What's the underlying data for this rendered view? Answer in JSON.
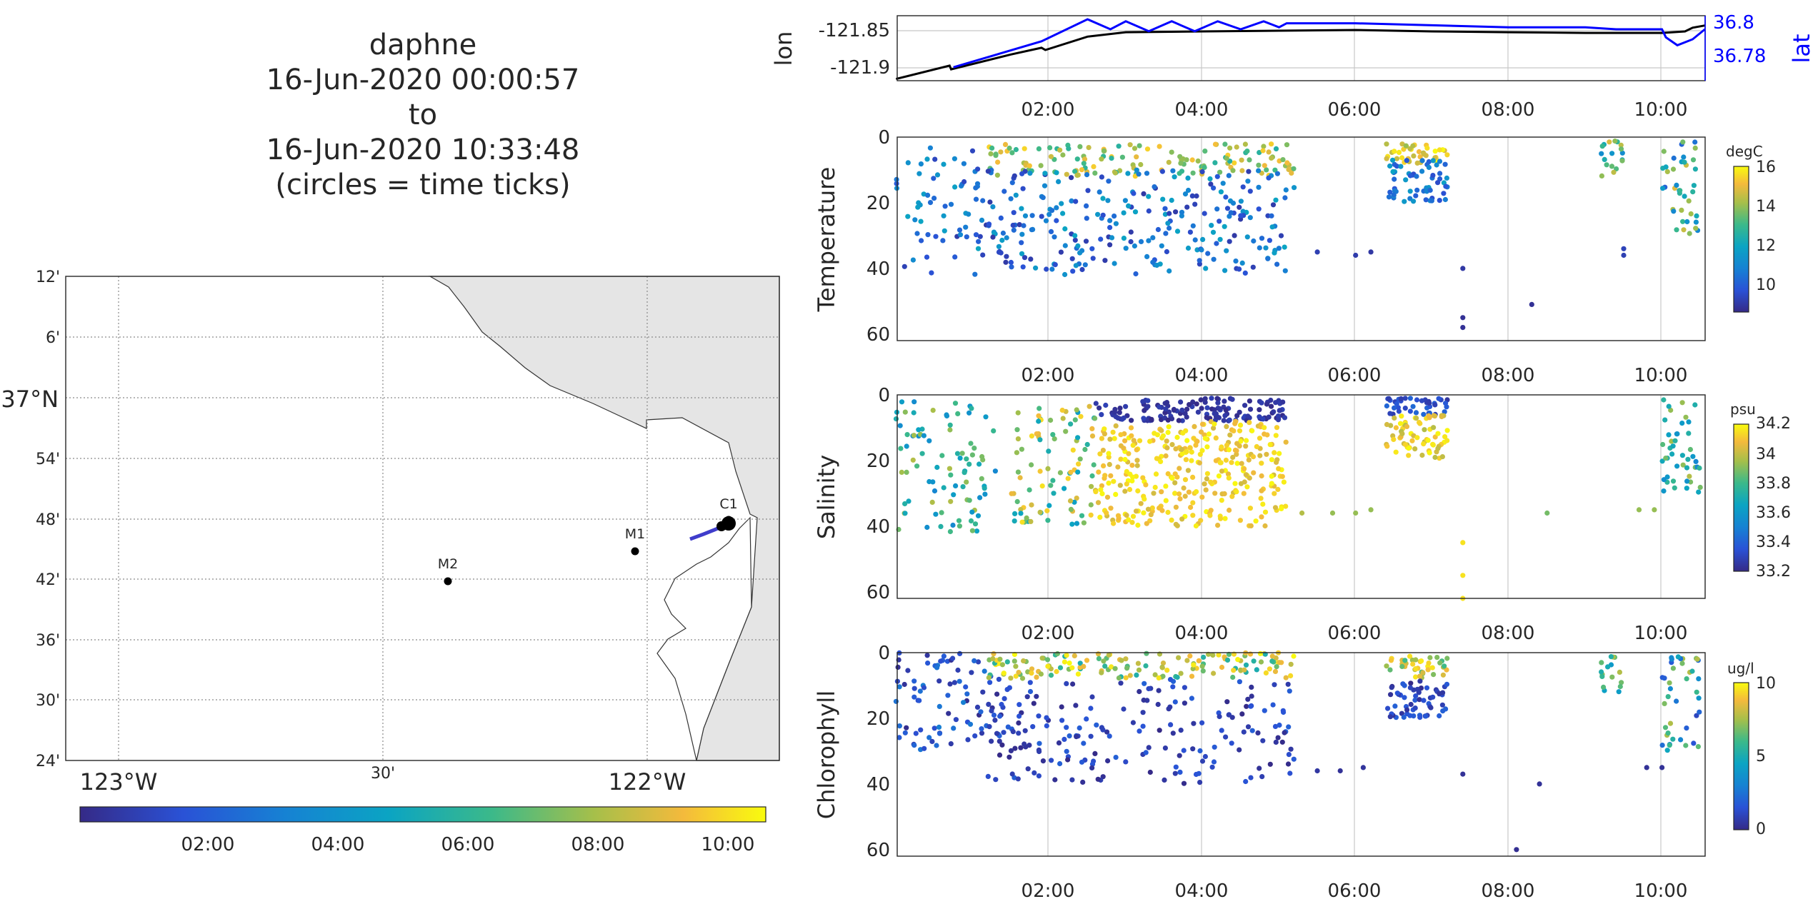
{
  "title": [
    "daphne",
    "16-Jun-2020 00:00:57",
    "to",
    "16-Jun-2020 10:33:48",
    "(circles = time ticks)"
  ],
  "map": {
    "lat_ticks": [
      "12'",
      "6'",
      "37°N",
      "54'",
      "48'",
      "42'",
      "36'",
      "30'",
      "24'"
    ],
    "lon_ticks": [
      "123°W",
      "30'",
      "122°W"
    ],
    "stations": [
      {
        "name": "M2",
        "lon": -122.39,
        "lat": 36.7
      },
      {
        "name": "M1",
        "lon": -122.03,
        "lat": 36.75
      },
      {
        "name": "C1",
        "lon": -121.85,
        "lat": 36.8
      }
    ],
    "land_color": "#e5e5e5",
    "colorbar_ticks": [
      "02:00",
      "04:00",
      "06:00",
      "08:00",
      "10:00"
    ]
  },
  "time_ticks": [
    "02:00",
    "04:00",
    "06:00",
    "08:00",
    "10:00"
  ],
  "chart_data": [
    {
      "type": "line",
      "title": "",
      "xlabel": "",
      "ylabel": "lon",
      "ylabel_right": "lat",
      "xlim_hours": [
        0.016,
        10.563
      ],
      "yticks_left": [
        "-121.85",
        "-121.9"
      ],
      "yticks_right": [
        "36.8",
        "36.78"
      ],
      "series": [
        {
          "name": "lon",
          "color": "#000000",
          "axis": "left",
          "x": [
            0.0,
            0.7,
            0.72,
            1.5,
            1.9,
            1.95,
            2.5,
            3.0,
            4.0,
            5.0,
            6.0,
            7.0,
            8.0,
            9.0,
            10.0,
            10.3,
            10.4,
            10.56
          ],
          "y": [
            -121.915,
            -121.897,
            -121.902,
            -121.882,
            -121.873,
            -121.876,
            -121.858,
            -121.852,
            -121.851,
            -121.85,
            -121.849,
            -121.851,
            -121.852,
            -121.853,
            -121.853,
            -121.851,
            -121.846,
            -121.843
          ]
        },
        {
          "name": "lat",
          "color": "#0000ff",
          "axis": "right",
          "x": [
            0.75,
            1.9,
            2.5,
            2.8,
            3.0,
            3.3,
            3.6,
            3.9,
            4.2,
            4.5,
            4.8,
            5.0,
            5.1,
            6.0,
            7.0,
            8.0,
            9.0,
            9.4,
            10.0,
            10.05,
            10.2,
            10.4,
            10.56
          ],
          "y": [
            36.776,
            36.789,
            36.8,
            36.795,
            36.799,
            36.794,
            36.799,
            36.794,
            36.799,
            36.795,
            36.799,
            36.796,
            36.798,
            36.798,
            36.797,
            36.796,
            36.796,
            36.795,
            36.795,
            36.791,
            36.787,
            36.79,
            36.795
          ]
        }
      ]
    },
    {
      "type": "scatter",
      "title": "",
      "xlabel": "",
      "ylabel": "Temperature",
      "ylim": [
        0,
        62
      ],
      "yticks": [
        "0",
        "20",
        "40",
        "60"
      ],
      "colorbar_unit": "degC",
      "colorbar_range": [
        8.6,
        16.0
      ],
      "colorbar_ticks": [
        "16",
        "14",
        "12",
        "10"
      ],
      "clusters": [
        {
          "x_range": [
            0.0,
            1.3
          ],
          "depth_range": [
            3,
            42
          ],
          "value_range": [
            9,
            12
          ],
          "n": 70
        },
        {
          "x_range": [
            1.2,
            5.2
          ],
          "depth_range": [
            2,
            12
          ],
          "value_range": [
            12.5,
            15.5
          ],
          "n": 140
        },
        {
          "x_range": [
            1.2,
            5.2
          ],
          "depth_range": [
            10,
            42
          ],
          "value_range": [
            9,
            12
          ],
          "n": 260
        },
        {
          "x_range": [
            6.4,
            7.2
          ],
          "depth_range": [
            2,
            8
          ],
          "value_range": [
            14,
            16
          ],
          "n": 40
        },
        {
          "x_range": [
            6.4,
            7.2
          ],
          "depth_range": [
            7,
            20
          ],
          "value_range": [
            9.5,
            12
          ],
          "n": 60
        },
        {
          "x_range": [
            9.2,
            9.5
          ],
          "depth_range": [
            1,
            12
          ],
          "value_range": [
            11,
            15
          ],
          "n": 18
        },
        {
          "x_range": [
            10.0,
            10.5
          ],
          "depth_range": [
            1,
            30
          ],
          "value_range": [
            10,
            15
          ],
          "n": 40
        }
      ],
      "points": [
        [
          5.5,
          35,
          9.2
        ],
        [
          6.0,
          36,
          9.1
        ],
        [
          6.2,
          35,
          9.0
        ],
        [
          7.4,
          40,
          9.0
        ],
        [
          7.4,
          55,
          8.8
        ],
        [
          7.4,
          58,
          8.8
        ],
        [
          8.3,
          51,
          8.8
        ],
        [
          9.5,
          34,
          9.3
        ],
        [
          9.5,
          36,
          9.2
        ]
      ]
    },
    {
      "type": "scatter",
      "title": "",
      "xlabel": "",
      "ylabel": "Salinity",
      "ylim": [
        0,
        62
      ],
      "yticks": [
        "0",
        "20",
        "40",
        "60"
      ],
      "colorbar_unit": "psu",
      "colorbar_range": [
        33.15,
        34.25
      ],
      "colorbar_ticks": [
        "34.2",
        "34",
        "33.8",
        "33.6",
        "33.4",
        "33.2"
      ],
      "clusters": [
        {
          "x_range": [
            0.0,
            1.3
          ],
          "depth_range": [
            2,
            42
          ],
          "value_range": [
            33.5,
            34.0
          ],
          "n": 90
        },
        {
          "x_range": [
            1.5,
            2.6
          ],
          "depth_range": [
            3,
            40
          ],
          "value_range": [
            33.6,
            34.2
          ],
          "n": 90
        },
        {
          "x_range": [
            2.6,
            5.1
          ],
          "depth_range": [
            1,
            8
          ],
          "value_range": [
            33.15,
            33.25
          ],
          "n": 140
        },
        {
          "x_range": [
            2.6,
            5.1
          ],
          "depth_range": [
            8,
            40
          ],
          "value_range": [
            34.05,
            34.25
          ],
          "n": 330
        },
        {
          "x_range": [
            6.4,
            7.2
          ],
          "depth_range": [
            1,
            6
          ],
          "value_range": [
            33.2,
            33.4
          ],
          "n": 40
        },
        {
          "x_range": [
            6.4,
            7.2
          ],
          "depth_range": [
            6,
            20
          ],
          "value_range": [
            34.0,
            34.25
          ],
          "n": 70
        },
        {
          "x_range": [
            10.0,
            10.5
          ],
          "depth_range": [
            1,
            30
          ],
          "value_range": [
            33.5,
            34.0
          ],
          "n": 45
        }
      ],
      "points": [
        [
          5.3,
          36,
          34.0
        ],
        [
          5.7,
          36,
          33.95
        ],
        [
          6.0,
          36,
          33.95
        ],
        [
          6.2,
          35,
          33.95
        ],
        [
          7.4,
          45,
          34.2
        ],
        [
          7.4,
          55,
          34.2
        ],
        [
          7.4,
          62,
          34.2
        ],
        [
          8.5,
          36,
          33.9
        ],
        [
          9.7,
          35,
          33.95
        ],
        [
          9.9,
          35,
          33.95
        ]
      ]
    },
    {
      "type": "scatter",
      "title": "",
      "xlabel": "",
      "ylabel": "Chlorophyll",
      "ylim": [
        0,
        62
      ],
      "yticks": [
        "0",
        "20",
        "40",
        "60"
      ],
      "colorbar_unit": "ug/l",
      "colorbar_range": [
        0,
        10
      ],
      "colorbar_ticks": [
        "10",
        "5",
        "0"
      ],
      "clusters": [
        {
          "x_range": [
            0.0,
            1.3
          ],
          "depth_range": [
            0,
            30
          ],
          "value_range": [
            0,
            3
          ],
          "n": 80
        },
        {
          "x_range": [
            1.2,
            5.2
          ],
          "depth_range": [
            0,
            8
          ],
          "value_range": [
            5,
            10
          ],
          "n": 150
        },
        {
          "x_range": [
            1.2,
            5.2
          ],
          "depth_range": [
            8,
            40
          ],
          "value_range": [
            0,
            2
          ],
          "n": 200
        },
        {
          "x_range": [
            6.4,
            7.2
          ],
          "depth_range": [
            1,
            8
          ],
          "value_range": [
            6,
            10
          ],
          "n": 40
        },
        {
          "x_range": [
            6.4,
            7.2
          ],
          "depth_range": [
            8,
            20
          ],
          "value_range": [
            0,
            2
          ],
          "n": 60
        },
        {
          "x_range": [
            9.2,
            9.5
          ],
          "depth_range": [
            1,
            12
          ],
          "value_range": [
            4,
            8
          ],
          "n": 16
        },
        {
          "x_range": [
            10.0,
            10.5
          ],
          "depth_range": [
            1,
            30
          ],
          "value_range": [
            1,
            8
          ],
          "n": 40
        }
      ],
      "points": [
        [
          5.5,
          36,
          0.5
        ],
        [
          5.8,
          36,
          0.3
        ],
        [
          6.1,
          35,
          0.4
        ],
        [
          7.4,
          37,
          0.3
        ],
        [
          8.1,
          60,
          0.2
        ],
        [
          8.4,
          40,
          0.3
        ],
        [
          9.8,
          35,
          0.3
        ],
        [
          10.0,
          35,
          0.3
        ]
      ]
    }
  ]
}
